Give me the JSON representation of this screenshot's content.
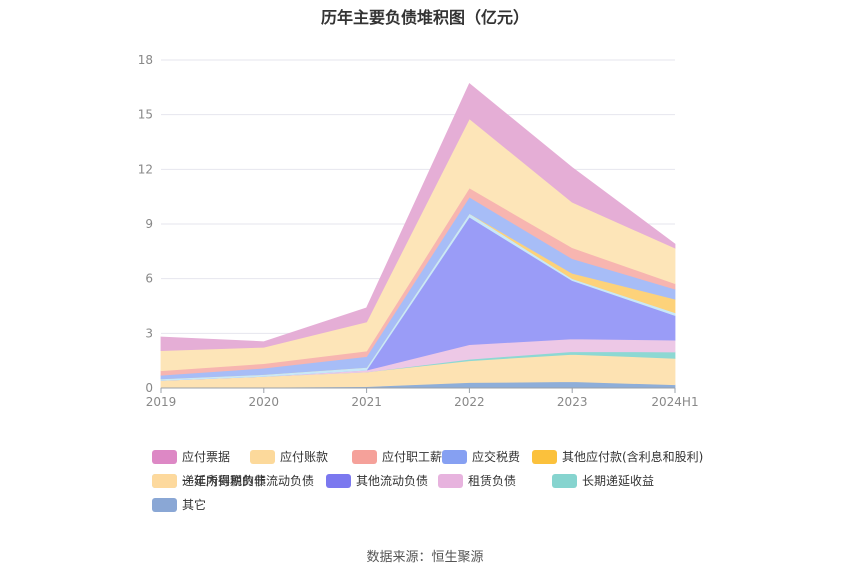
{
  "chart_data": {
    "type": "area",
    "title": "历年主要负债堆积图（亿元）",
    "x": [
      "2019",
      "2020",
      "2021",
      "2022",
      "2023",
      "2024H1"
    ],
    "yticks": [
      0,
      3,
      6,
      9,
      12,
      15,
      18
    ],
    "ylim": [
      0,
      18
    ],
    "stacked": true,
    "legend_position": "bottom",
    "series": [
      {
        "name": "其它",
        "color": "#8eaed9",
        "values": [
          0.02,
          0.04,
          0.08,
          0.3,
          0.35,
          0.18
        ]
      },
      {
        "name": "递延所得税负债",
        "color": "#fde2b2",
        "values": [
          0.4,
          0.6,
          0.8,
          1.2,
          1.5,
          1.45
        ]
      },
      {
        "name": "长期递延收益",
        "color": "#8dd8d3",
        "values": [
          0.0,
          0.0,
          0.0,
          0.08,
          0.15,
          0.35
        ]
      },
      {
        "name": "租赁负债",
        "color": "#edc8e6",
        "values": [
          0.0,
          0.0,
          0.1,
          0.8,
          0.7,
          0.65
        ]
      },
      {
        "name": "其他流动负债",
        "color": "#9a9cf7",
        "values": [
          0.0,
          0.0,
          0.0,
          7.0,
          3.2,
          1.35
        ]
      },
      {
        "name": "一年内到期的非流动负债",
        "color": "#c9e8f7",
        "values": [
          0.08,
          0.1,
          0.15,
          0.2,
          0.1,
          0.15
        ]
      },
      {
        "name": "其他应付款(含利息和股利)",
        "color": "#fdd27a",
        "values": [
          0.0,
          0.0,
          0.0,
          0.0,
          0.3,
          0.75
        ]
      },
      {
        "name": "应交税费",
        "color": "#a7bdf7",
        "values": [
          0.2,
          0.35,
          0.6,
          0.9,
          0.8,
          0.55
        ]
      },
      {
        "name": "应付职工薪酬",
        "color": "#f7b5b0",
        "values": [
          0.25,
          0.25,
          0.3,
          0.5,
          0.6,
          0.3
        ]
      },
      {
        "name": "应付账款",
        "color": "#fde5b8",
        "values": [
          1.1,
          0.9,
          1.6,
          3.8,
          2.5,
          1.95
        ]
      },
      {
        "name": "应付票据",
        "color": "#e5aed6",
        "values": [
          0.75,
          0.3,
          0.77,
          1.92,
          1.9,
          0.22
        ]
      }
    ],
    "legend_colors": {
      "应付票据": "#dd88c5",
      "应付账款": "#fcd99b",
      "应付职工薪酬": "#f5a19a",
      "应交税费": "#86a0f2",
      "其他应付款(含利息和股利)": "#fbc13c",
      "一年内到期的非流动负债": "#a8dcf5",
      "其他流动负债": "#7b78ef",
      "租赁负债": "#e7b3de",
      "长期递延收益": "#86d4cf",
      "递延所得税负债": "#fdd99d",
      "其它": "#8aa7d5"
    }
  },
  "legend_order": [
    "应付票据",
    "应付账款",
    "应付职工薪酬",
    "应交税费",
    "其他应付款(含利息和股利)",
    "一年内到期的非流动负债",
    "其他流动负债",
    "租赁负债",
    "长期递延收益",
    "递延所得税负债",
    "其它"
  ],
  "source": "数据来源：恒生聚源"
}
